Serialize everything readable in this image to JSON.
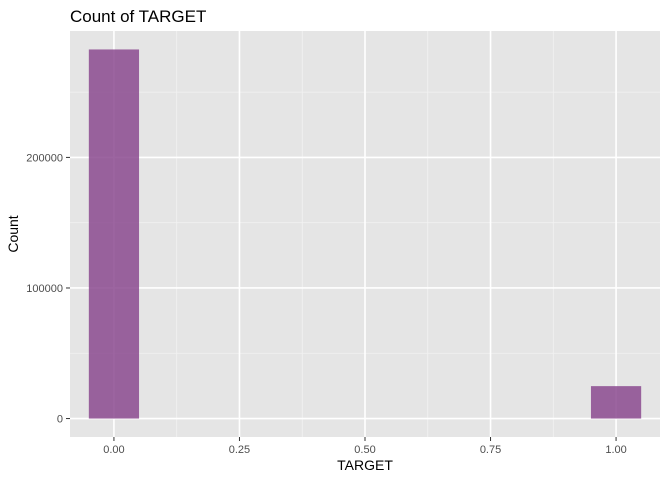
{
  "chart_data": {
    "type": "bar",
    "title": "Count of TARGET",
    "xlabel": "TARGET",
    "ylabel": "Count",
    "x": [
      0,
      1
    ],
    "values": [
      282686,
      24825
    ],
    "bar_width": 0.1,
    "xlim": [
      -0.0875,
      1.0875
    ],
    "ylim": [
      -14134,
      296820
    ],
    "x_ticks": [
      0,
      0.25,
      0.5,
      0.75,
      1
    ],
    "x_tick_labels": [
      "0.00",
      "0.25",
      "0.50",
      "0.75",
      "1.00"
    ],
    "y_ticks": [
      0,
      100000,
      200000
    ],
    "y_tick_labels": [
      "0",
      "100000",
      "200000"
    ],
    "grid": true,
    "bar_color": "#8b4a8f",
    "panel_background": "#e5e5e5",
    "legend": "none"
  }
}
